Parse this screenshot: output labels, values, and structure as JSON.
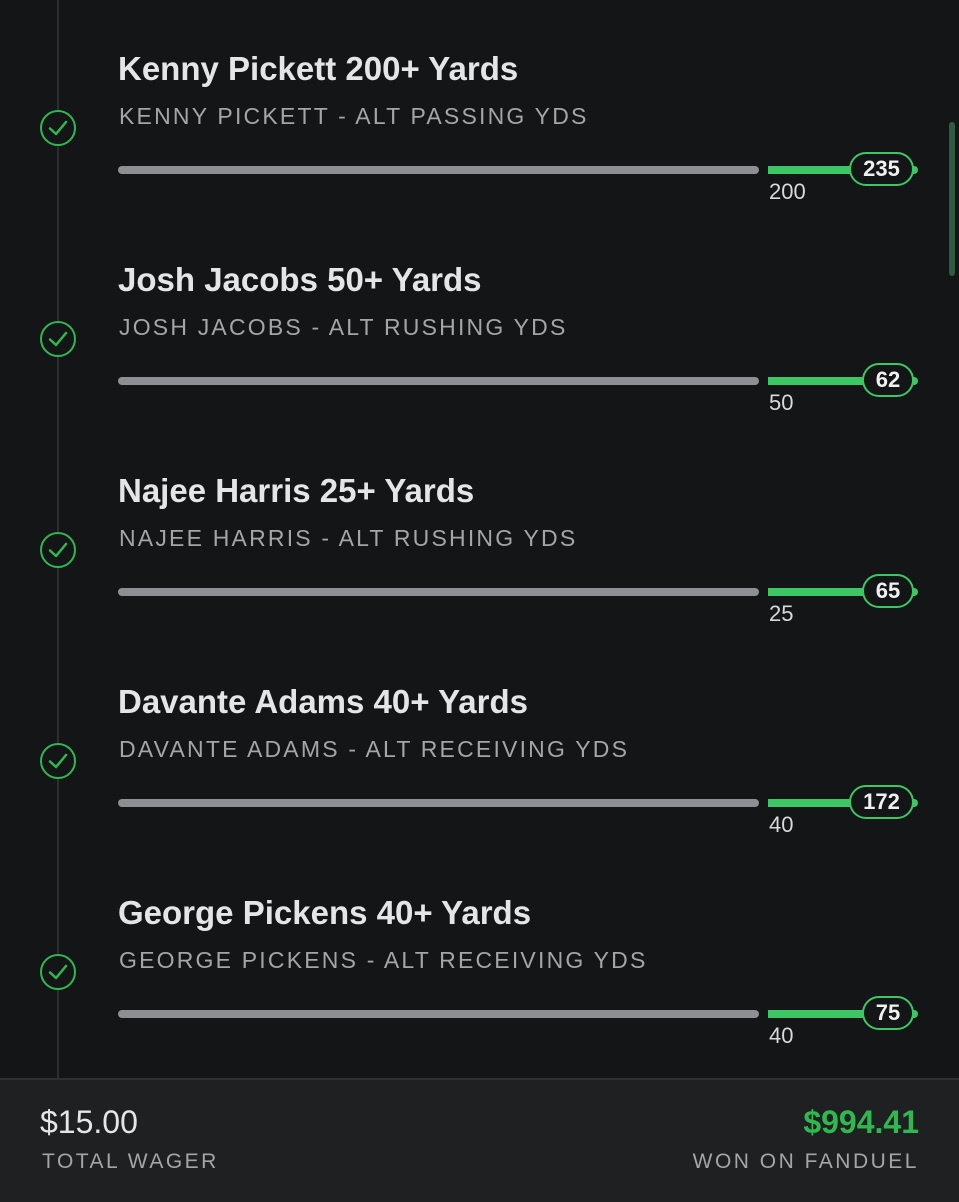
{
  "legs": [
    {
      "title": "Kenny Pickett 200+ Yards",
      "subtitle": "KENNY PICKETT - ALT PASSING YDS",
      "threshold": "200",
      "result": "235"
    },
    {
      "title": "Josh Jacobs 50+ Yards",
      "subtitle": "JOSH JACOBS - ALT RUSHING YDS",
      "threshold": "50",
      "result": "62"
    },
    {
      "title": "Najee Harris 25+ Yards",
      "subtitle": "NAJEE HARRIS - ALT RUSHING YDS",
      "threshold": "25",
      "result": "65"
    },
    {
      "title": "Davante Adams 40+ Yards",
      "subtitle": "DAVANTE ADAMS - ALT RECEIVING YDS",
      "threshold": "40",
      "result": "172"
    },
    {
      "title": "George Pickens 40+ Yards",
      "subtitle": "GEORGE PICKENS - ALT RECEIVING YDS",
      "threshold": "40",
      "result": "75"
    }
  ],
  "footer": {
    "wager": "$15.00",
    "wager_label": "TOTAL WAGER",
    "won": "$994.41",
    "won_label": "WON ON FANDUEL"
  }
}
